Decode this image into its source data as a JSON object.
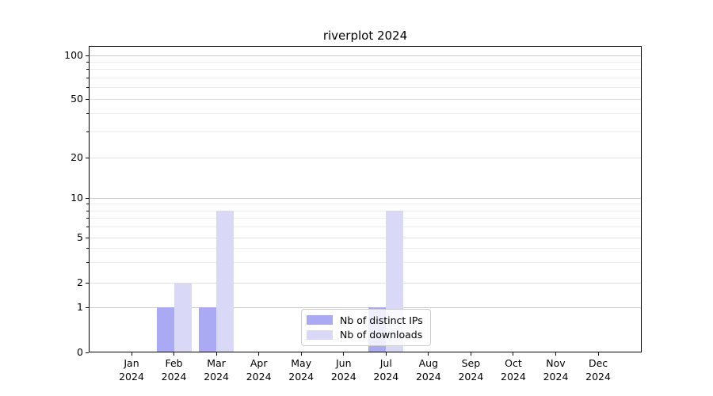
{
  "chart_data": {
    "type": "bar",
    "title": "riverplot 2024",
    "xlabel": "",
    "ylabel": "",
    "scale": "symlog",
    "grid": true,
    "legend_position": "lower center",
    "categories": [
      {
        "label": "Jan",
        "sub": "2024"
      },
      {
        "label": "Feb",
        "sub": "2024"
      },
      {
        "label": "Mar",
        "sub": "2024"
      },
      {
        "label": "Apr",
        "sub": "2024"
      },
      {
        "label": "May",
        "sub": "2024"
      },
      {
        "label": "Jun",
        "sub": "2024"
      },
      {
        "label": "Jul",
        "sub": "2024"
      },
      {
        "label": "Aug",
        "sub": "2024"
      },
      {
        "label": "Sep",
        "sub": "2024"
      },
      {
        "label": "Oct",
        "sub": "2024"
      },
      {
        "label": "Nov",
        "sub": "2024"
      },
      {
        "label": "Dec",
        "sub": "2024"
      }
    ],
    "series": [
      {
        "name": "Nb of distinct IPs",
        "color": "#a9a9f4",
        "values": [
          0,
          1,
          1,
          0,
          0,
          0,
          1,
          0,
          0,
          0,
          0,
          0
        ]
      },
      {
        "name": "Nb of downloads",
        "color": "#d9d9f7",
        "values": [
          0,
          2,
          8,
          0,
          0,
          0,
          8,
          0,
          0,
          0,
          0,
          0
        ]
      }
    ],
    "y_ticks": [
      0,
      1,
      2,
      5,
      10,
      20,
      50,
      100
    ],
    "ylim": [
      0,
      116
    ],
    "colors": {
      "grid_major": "#c9c9c9",
      "grid_mid": "#e0e0e0",
      "grid_minor": "#ededed",
      "axis": "#000000",
      "legend_border": "#cccccc"
    }
  }
}
